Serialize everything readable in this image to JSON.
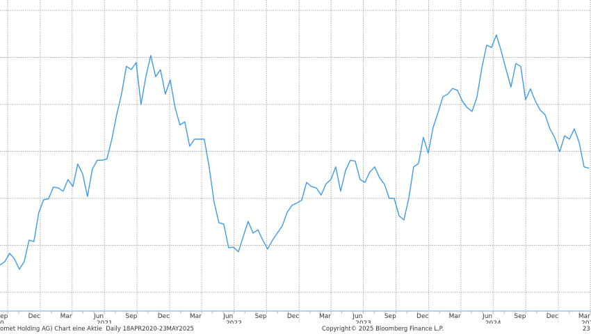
{
  "chart_data": {
    "type": "line",
    "title": "",
    "xlabel": "",
    "ylabel": "",
    "y_axis_labels_shown": false,
    "grid": true,
    "line_color": "#3d9ae8",
    "x_start": "2020-09-09",
    "x_end": "2025-03-28",
    "y_unit_note": "y in gridline intervals above the lowest gridline (no y tick labels printed)",
    "ylim": [
      -0.4,
      6.22
    ],
    "values": [
      0.58,
      0.65,
      0.83,
      0.71,
      0.49,
      0.65,
      1.11,
      1.08,
      1.7,
      1.97,
      1.99,
      2.24,
      2.22,
      2.15,
      2.4,
      2.25,
      2.73,
      2.52,
      2.04,
      2.62,
      2.81,
      2.81,
      2.84,
      3.26,
      3.78,
      4.22,
      4.81,
      4.74,
      4.89,
      4.0,
      4.59,
      5.04,
      4.59,
      4.74,
      4.22,
      4.52,
      3.93,
      3.56,
      3.63,
      3.11,
      3.26,
      3.26,
      3.26,
      2.67,
      1.93,
      1.48,
      1.45,
      0.95,
      0.96,
      0.86,
      1.19,
      1.51,
      1.26,
      1.33,
      1.11,
      0.92,
      1.11,
      1.26,
      1.41,
      1.7,
      1.85,
      1.9,
      1.96,
      2.34,
      2.25,
      2.22,
      2.07,
      2.31,
      2.4,
      2.67,
      2.15,
      2.59,
      2.81,
      2.79,
      2.4,
      2.34,
      2.56,
      2.67,
      2.44,
      2.3,
      2.0,
      2.0,
      1.63,
      1.54,
      2.0,
      2.67,
      2.74,
      3.3,
      2.96,
      3.51,
      3.82,
      4.16,
      4.22,
      4.34,
      4.3,
      4.07,
      3.93,
      3.85,
      4.15,
      4.77,
      5.26,
      5.21,
      5.48,
      5.13,
      4.74,
      4.37,
      4.87,
      4.81,
      4.1,
      4.33,
      4.07,
      3.88,
      3.78,
      3.48,
      3.29,
      2.99,
      3.33,
      3.26,
      3.48,
      3.19,
      2.67,
      2.64
    ],
    "month_tick_labels": [
      "Sep",
      "Dec",
      "Mar",
      "Jun",
      "Sep",
      "Dec",
      "Mar",
      "Jun",
      "Sep",
      "Dec",
      "Mar",
      "Jun",
      "Sep",
      "Dec",
      "Mar",
      "Jun",
      "Sep",
      "Dec",
      "Mar"
    ],
    "year_labels": [
      "0",
      "2021",
      "2022",
      "2023",
      "2024",
      "202"
    ]
  },
  "footer": {
    "description": "omet Holding AG) Chart eine Aktie  Daily 18APR2020-23MAY2025",
    "copyright": "Copyright© 2025 Bloomberg Finance L.P.",
    "date_stamp": "23-"
  }
}
